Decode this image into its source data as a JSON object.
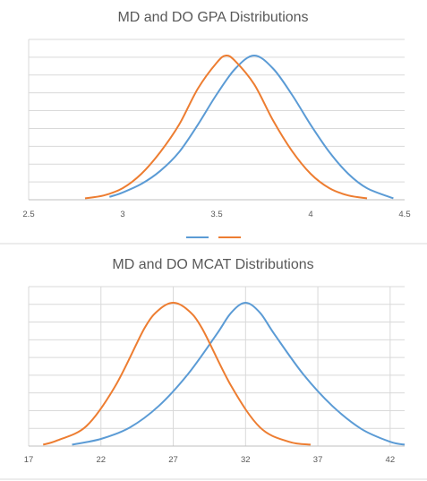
{
  "colors": {
    "md": "#5b9bd5",
    "do": "#ed7d31"
  },
  "charts": [
    {
      "title": "MD and DO GPA Distributions",
      "chart_data": {
        "type": "line",
        "title": "MD and DO GPA Distributions",
        "xlim": [
          2.5,
          4.5
        ],
        "ylim": [
          0,
          1
        ],
        "xticks": [
          "2.5",
          "3",
          "3.5",
          "4",
          "4.5"
        ],
        "grid": true,
        "legend": "bottom",
        "series": [
          {
            "color": "#5b9bd5",
            "x": [
              2.93,
              3.0,
              3.1,
              3.2,
              3.3,
              3.4,
              3.5,
              3.6,
              3.7,
              3.8,
              3.9,
              4.0,
              4.1,
              4.2,
              4.3,
              4.44
            ],
            "values": [
              0.02,
              0.05,
              0.11,
              0.2,
              0.33,
              0.52,
              0.73,
              0.91,
              1.0,
              0.91,
              0.73,
              0.52,
              0.33,
              0.18,
              0.08,
              0.01
            ]
          },
          {
            "color": "#ed7d31",
            "x": [
              2.8,
              2.9,
              3.0,
              3.1,
              3.2,
              3.3,
              3.4,
              3.5,
              3.55,
              3.6,
              3.7,
              3.8,
              3.9,
              4.0,
              4.1,
              4.2,
              4.3
            ],
            "values": [
              0.01,
              0.03,
              0.08,
              0.18,
              0.33,
              0.52,
              0.77,
              0.95,
              1.0,
              0.96,
              0.8,
              0.55,
              0.34,
              0.18,
              0.08,
              0.03,
              0.01
            ]
          }
        ]
      }
    },
    {
      "title": "MD and DO MCAT Distributions",
      "chart_data": {
        "type": "line",
        "title": "MD and DO MCAT Distributions",
        "xlim": [
          17,
          43
        ],
        "ylim": [
          0,
          1
        ],
        "xticks": [
          "17",
          "22",
          "27",
          "32",
          "37",
          "42"
        ],
        "grid": true,
        "series": [
          {
            "color": "#5b9bd5",
            "x": [
              20,
              22,
              24,
              26,
              28,
              30,
              31,
              32,
              33,
              34,
              36,
              38,
              40,
              42,
              43
            ],
            "values": [
              0.01,
              0.05,
              0.13,
              0.28,
              0.5,
              0.78,
              0.93,
              1.0,
              0.93,
              0.78,
              0.5,
              0.28,
              0.12,
              0.03,
              0.01
            ]
          },
          {
            "color": "#ed7d31",
            "x": [
              18,
              19,
              21,
              23,
              25,
              26,
              27,
              28,
              29,
              31,
              33,
              35,
              36.5
            ],
            "values": [
              0.01,
              0.04,
              0.14,
              0.42,
              0.82,
              0.95,
              1.0,
              0.95,
              0.82,
              0.42,
              0.13,
              0.03,
              0.01
            ]
          }
        ]
      }
    }
  ]
}
